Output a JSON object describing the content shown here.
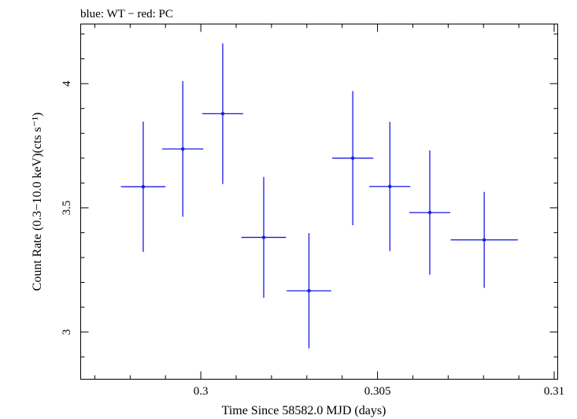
{
  "chart_data": {
    "type": "scatter",
    "title": "blue: WT − red: PC",
    "xlabel": "Time Since 58582.0 MJD (days)",
    "ylabel": "Count Rate (0.3−10.0 keV)(cts s⁻¹)",
    "xlim": [
      0.2966,
      0.3101
    ],
    "ylim": [
      2.81,
      4.24
    ],
    "x_ticks": [
      0.3,
      0.305,
      0.31
    ],
    "x_tick_labels": [
      "0.3",
      "0.305",
      "0.31"
    ],
    "y_ticks": [
      3,
      3.5,
      4
    ],
    "y_tick_labels": [
      "3",
      "3.5",
      "4"
    ],
    "x_minor_step": 0.001,
    "y_minor_step": 0.1,
    "grid": false,
    "series": [
      {
        "color": "#1a1ae6",
        "points": [
          {
            "x": 0.29837,
            "y": 3.585,
            "xerr": 0.00063,
            "yerr": 0.262
          },
          {
            "x": 0.29949,
            "y": 3.737,
            "xerr": 0.00058,
            "yerr": 0.273
          },
          {
            "x": 0.30062,
            "y": 3.879,
            "xerr": 0.00058,
            "yerr": 0.283
          },
          {
            "x": 0.30178,
            "y": 3.381,
            "xerr": 0.00063,
            "yerr": 0.243
          },
          {
            "x": 0.30306,
            "y": 3.166,
            "xerr": 0.00063,
            "yerr": 0.232
          },
          {
            "x": 0.3043,
            "y": 3.7,
            "xerr": 0.00058,
            "yerr": 0.27
          },
          {
            "x": 0.30535,
            "y": 3.586,
            "xerr": 0.00058,
            "yerr": 0.26
          },
          {
            "x": 0.30648,
            "y": 3.481,
            "xerr": 0.00058,
            "yerr": 0.25
          },
          {
            "x": 0.30802,
            "y": 3.371,
            "xerr": 0.00095,
            "yerr": 0.193
          }
        ]
      }
    ]
  }
}
